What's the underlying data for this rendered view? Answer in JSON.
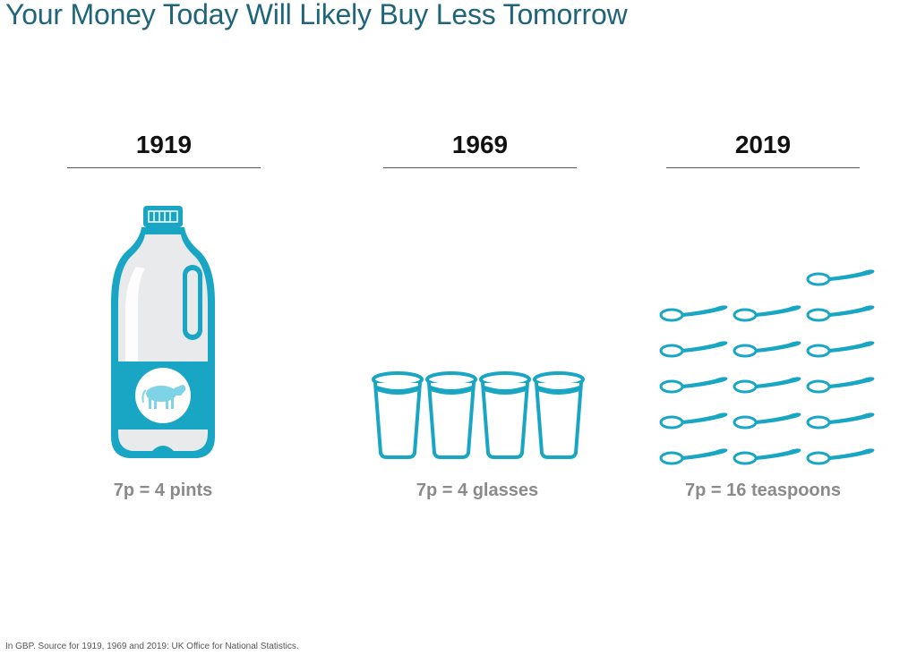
{
  "title": "Your Money Today Will Likely Buy Less Tomorrow",
  "columns": [
    {
      "year": "1919",
      "caption": "7p = 4 pints",
      "icon": "milk-bottle-icon",
      "count": 1
    },
    {
      "year": "1969",
      "caption": "7p = 4 glasses",
      "icon": "milk-glass-icon",
      "count": 4
    },
    {
      "year": "2019",
      "caption": "7p = 16 teaspoons",
      "icon": "teaspoon-icon",
      "count": 16
    }
  ],
  "footnote": "In GBP. Source for 1919, 1969 and 2019: UK Office for National Statistics.",
  "colors": {
    "title": "#1f6478",
    "accent": "#18a6c4",
    "accent_light": "#7fd3e6",
    "bottle_body": "#e9eaec",
    "caption": "#8a8a8a"
  }
}
